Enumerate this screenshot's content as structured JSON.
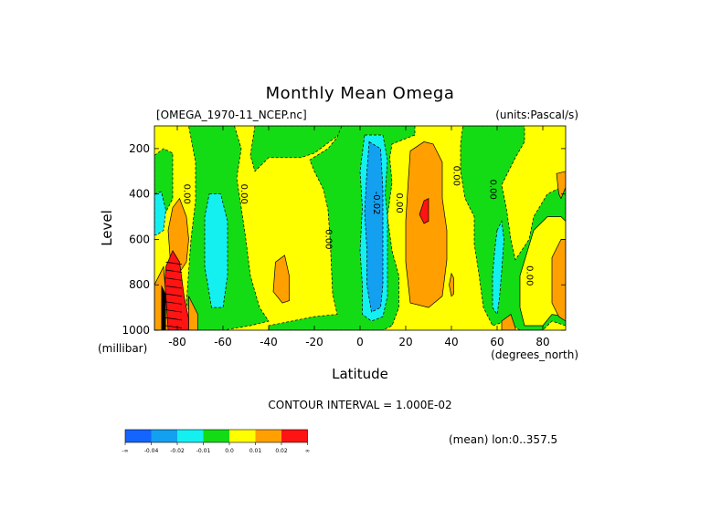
{
  "chart_data": {
    "type": "heatmap",
    "title": "Monthly Mean Omega",
    "source_label": "[OMEGA_1970-11_NCEP.nc]",
    "units_label": "(units:Pascal/s)",
    "xlabel": "Latitude",
    "x_units": "(degrees_north)",
    "ylabel": "Level",
    "y_units": "(millibar)",
    "xlim": [
      -90,
      90
    ],
    "ylim": [
      1000,
      100
    ],
    "x_ticks": [
      -80,
      -60,
      -40,
      -20,
      0,
      20,
      40,
      60,
      80
    ],
    "y_ticks": [
      200,
      400,
      600,
      800,
      1000
    ],
    "contour_interval_text": "CONTOUR INTERVAL = 1.000E-02",
    "footnote": "(mean) lon:0..357.5",
    "colorbar": {
      "colors": [
        "#1464ff",
        "#14a0f0",
        "#14f0f0",
        "#14dc14",
        "#ffff00",
        "#ffa000",
        "#ff1414"
      ],
      "labels": [
        "-∞",
        "-0.04",
        "-0.02",
        "-0.01",
        "0.0",
        "0.01",
        "0.02",
        "∞"
      ]
    },
    "contour_labels": [
      {
        "text": "0.00",
        "lat": -77,
        "lev": 400
      },
      {
        "text": "0.00",
        "lat": -52,
        "lev": 400
      },
      {
        "text": "0.00",
        "lat": -15,
        "lev": 600
      },
      {
        "text": "-0.02",
        "lat": 6,
        "lev": 440
      },
      {
        "text": "0.00",
        "lat": 16,
        "lev": 440
      },
      {
        "text": "0.00",
        "lat": 41,
        "lev": 320
      },
      {
        "text": "0.00",
        "lat": 57,
        "lev": 380
      },
      {
        "text": "0.00",
        "lat": 73,
        "lev": 760
      }
    ],
    "regions": [
      {
        "name": "background-yellow",
        "level": 0.005,
        "pts": [
          [
            -90,
            100
          ],
          [
            90,
            100
          ],
          [
            90,
            1000
          ],
          [
            -90,
            1000
          ]
        ]
      },
      {
        "name": "green-south-edge",
        "level": -0.005,
        "pts": [
          [
            -90,
            230
          ],
          [
            -86,
            200
          ],
          [
            -82,
            220
          ],
          [
            -82,
            420
          ],
          [
            -86,
            500
          ],
          [
            -90,
            520
          ]
        ]
      },
      {
        "name": "green-south-tall",
        "level": -0.005,
        "pts": [
          [
            -75,
            100
          ],
          [
            -55,
            100
          ],
          [
            -52,
            200
          ],
          [
            -54,
            330
          ],
          [
            -52,
            460
          ],
          [
            -50,
            600
          ],
          [
            -48,
            760
          ],
          [
            -44,
            900
          ],
          [
            -40,
            960
          ],
          [
            -48,
            980
          ],
          [
            -60,
            1000
          ],
          [
            -72,
            1000
          ],
          [
            -76,
            880
          ],
          [
            -74,
            600
          ],
          [
            -72,
            430
          ],
          [
            -72,
            260
          ]
        ]
      },
      {
        "name": "cyan-south",
        "level": -0.015,
        "pts": [
          [
            -66,
            400
          ],
          [
            -61,
            400
          ],
          [
            -58,
            520
          ],
          [
            -58,
            760
          ],
          [
            -60,
            900
          ],
          [
            -65,
            900
          ],
          [
            -68,
            720
          ],
          [
            -68,
            500
          ]
        ]
      },
      {
        "name": "cyan-south-edge",
        "level": -0.015,
        "pts": [
          [
            -90,
            400
          ],
          [
            -87,
            390
          ],
          [
            -85,
            470
          ],
          [
            -86,
            560
          ],
          [
            -89,
            580
          ],
          [
            -90,
            580
          ]
        ]
      },
      {
        "name": "orange-south-column",
        "level": 0.015,
        "pts": [
          [
            -82,
            460
          ],
          [
            -79,
            420
          ],
          [
            -76,
            500
          ],
          [
            -75,
            600
          ],
          [
            -76,
            700
          ],
          [
            -80,
            760
          ],
          [
            -83,
            700
          ],
          [
            -84,
            560
          ]
        ]
      },
      {
        "name": "red-south-low",
        "level": 0.025,
        "pts": [
          [
            -85,
            720
          ],
          [
            -82,
            650
          ],
          [
            -79,
            700
          ],
          [
            -77,
            850
          ],
          [
            -75,
            950
          ],
          [
            -75,
            1000
          ],
          [
            -85,
            1000
          ],
          [
            -86,
            880
          ]
        ]
      },
      {
        "name": "orange-south-low",
        "level": 0.015,
        "pts": [
          [
            -90,
            800
          ],
          [
            -86,
            720
          ],
          [
            -85,
            850
          ],
          [
            -84,
            1000
          ],
          [
            -90,
            1000
          ]
        ]
      },
      {
        "name": "orange-south-low2",
        "level": 0.015,
        "pts": [
          [
            -75,
            850
          ],
          [
            -71,
            930
          ],
          [
            -71,
            1000
          ],
          [
            -75,
            1000
          ]
        ]
      },
      {
        "name": "green-upper-mid",
        "level": -0.005,
        "pts": [
          [
            -30,
            100
          ],
          [
            -8,
            100
          ],
          [
            -8,
            130
          ],
          [
            -20,
            220
          ],
          [
            -26,
            240
          ],
          [
            -40,
            240
          ],
          [
            -46,
            300
          ],
          [
            -48,
            230
          ],
          [
            -46,
            100
          ]
        ]
      },
      {
        "name": "orange-south-mid",
        "level": 0.015,
        "pts": [
          [
            -37,
            700
          ],
          [
            -33,
            670
          ],
          [
            -31,
            760
          ],
          [
            -31,
            870
          ],
          [
            -34,
            880
          ],
          [
            -38,
            830
          ]
        ]
      },
      {
        "name": "green-central",
        "level": -0.005,
        "pts": [
          [
            -8,
            100
          ],
          [
            24,
            100
          ],
          [
            24,
            140
          ],
          [
            14,
            180
          ],
          [
            13,
            240
          ],
          [
            14,
            350
          ],
          [
            12,
            500
          ],
          [
            14,
            650
          ],
          [
            17,
            760
          ],
          [
            17,
            900
          ],
          [
            14,
            980
          ],
          [
            10,
            1000
          ],
          [
            -40,
            1000
          ],
          [
            -40,
            980
          ],
          [
            -20,
            940
          ],
          [
            -10,
            930
          ],
          [
            -12,
            840
          ],
          [
            -13,
            620
          ],
          [
            -14,
            470
          ],
          [
            -16,
            380
          ],
          [
            -20,
            300
          ],
          [
            -22,
            250
          ],
          [
            -14,
            200
          ],
          [
            -10,
            150
          ]
        ]
      },
      {
        "name": "cyan-central",
        "level": -0.015,
        "pts": [
          [
            2,
            140
          ],
          [
            10,
            140
          ],
          [
            12,
            250
          ],
          [
            11,
            400
          ],
          [
            12,
            500
          ],
          [
            12,
            650
          ],
          [
            12,
            850
          ],
          [
            10,
            940
          ],
          [
            5,
            960
          ],
          [
            1,
            930
          ],
          [
            1,
            800
          ],
          [
            0,
            650
          ],
          [
            1,
            460
          ],
          [
            0,
            300
          ]
        ]
      },
      {
        "name": "blue-central",
        "level": -0.025,
        "pts": [
          [
            4,
            170
          ],
          [
            9,
            200
          ],
          [
            10,
            380
          ],
          [
            10,
            600
          ],
          [
            10,
            800
          ],
          [
            9,
            900
          ],
          [
            5,
            920
          ],
          [
            3,
            800
          ],
          [
            3,
            640
          ],
          [
            2,
            480
          ],
          [
            3,
            300
          ]
        ]
      },
      {
        "name": "orange-north",
        "level": 0.015,
        "pts": [
          [
            22,
            210
          ],
          [
            28,
            170
          ],
          [
            32,
            180
          ],
          [
            36,
            260
          ],
          [
            36,
            420
          ],
          [
            38,
            560
          ],
          [
            38,
            690
          ],
          [
            36,
            850
          ],
          [
            30,
            900
          ],
          [
            22,
            880
          ],
          [
            20,
            700
          ],
          [
            20,
            520
          ],
          [
            21,
            360
          ]
        ]
      },
      {
        "name": "red-north",
        "level": 0.025,
        "pts": [
          [
            28,
            430
          ],
          [
            30,
            420
          ],
          [
            30,
            520
          ],
          [
            28,
            530
          ],
          [
            26,
            490
          ]
        ]
      },
      {
        "name": "orange-north-small",
        "level": 0.015,
        "pts": [
          [
            40,
            750
          ],
          [
            41,
            770
          ],
          [
            41,
            840
          ],
          [
            40,
            850
          ],
          [
            39,
            800
          ]
        ]
      },
      {
        "name": "green-north-tall",
        "level": -0.005,
        "pts": [
          [
            45,
            100
          ],
          [
            72,
            100
          ],
          [
            72,
            170
          ],
          [
            68,
            240
          ],
          [
            62,
            360
          ],
          [
            64,
            460
          ],
          [
            66,
            600
          ],
          [
            68,
            690
          ],
          [
            74,
            600
          ],
          [
            76,
            500
          ],
          [
            82,
            400
          ],
          [
            88,
            370
          ],
          [
            90,
            360
          ],
          [
            90,
            980
          ],
          [
            84,
            960
          ],
          [
            80,
            1000
          ],
          [
            70,
            1000
          ],
          [
            64,
            960
          ],
          [
            58,
            980
          ],
          [
            54,
            900
          ],
          [
            52,
            750
          ],
          [
            50,
            620
          ],
          [
            50,
            500
          ],
          [
            46,
            420
          ],
          [
            44,
            300
          ],
          [
            44,
            180
          ]
        ]
      },
      {
        "name": "yellow-north-pocket",
        "level": 0.005,
        "pts": [
          [
            76,
            560
          ],
          [
            82,
            500
          ],
          [
            88,
            500
          ],
          [
            90,
            520
          ],
          [
            90,
            940
          ],
          [
            84,
            930
          ],
          [
            80,
            980
          ],
          [
            72,
            980
          ],
          [
            70,
            900
          ],
          [
            70,
            760
          ]
        ]
      },
      {
        "name": "cyan-north",
        "level": -0.015,
        "pts": [
          [
            60,
            560
          ],
          [
            62,
            520
          ],
          [
            63,
            600
          ],
          [
            62,
            740
          ],
          [
            61,
            860
          ],
          [
            60,
            930
          ],
          [
            58,
            900
          ],
          [
            58,
            760
          ],
          [
            59,
            640
          ]
        ]
      },
      {
        "name": "orange-north-tall",
        "level": 0.015,
        "pts": [
          [
            86,
            310
          ],
          [
            90,
            300
          ],
          [
            90,
            370
          ],
          [
            88,
            420
          ],
          [
            87,
            400
          ]
        ]
      },
      {
        "name": "orange-north-right",
        "level": 0.015,
        "pts": [
          [
            84,
            680
          ],
          [
            88,
            600
          ],
          [
            90,
            600
          ],
          [
            90,
            960
          ],
          [
            87,
            940
          ],
          [
            84,
            880
          ]
        ]
      },
      {
        "name": "orange-north-bottom",
        "level": 0.015,
        "pts": [
          [
            62,
            960
          ],
          [
            66,
            930
          ],
          [
            68,
            990
          ],
          [
            68,
            1000
          ],
          [
            62,
            1000
          ]
        ]
      }
    ],
    "dark_column": [
      {
        "lat": -87,
        "lev_top": 800
      },
      {
        "lat": -85,
        "lev_top": 840
      }
    ]
  }
}
